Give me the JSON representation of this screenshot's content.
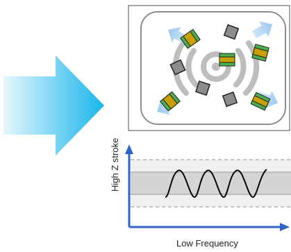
{
  "diagram": {
    "y_axis_label": "High Z stroke",
    "x_axis_label": "Low Frequency",
    "colors": {
      "arrow_light": "#e6f6fd",
      "arrow_dark": "#19b6ec",
      "part_pad": "#4caf50",
      "part_body": "#c8a000",
      "gray_part": "#8c8c8c",
      "axis": "#2f63c8"
    },
    "icons": [
      "large-right-arrow-icon",
      "vibratory-feeder-icon",
      "sine-wave-icon"
    ]
  }
}
